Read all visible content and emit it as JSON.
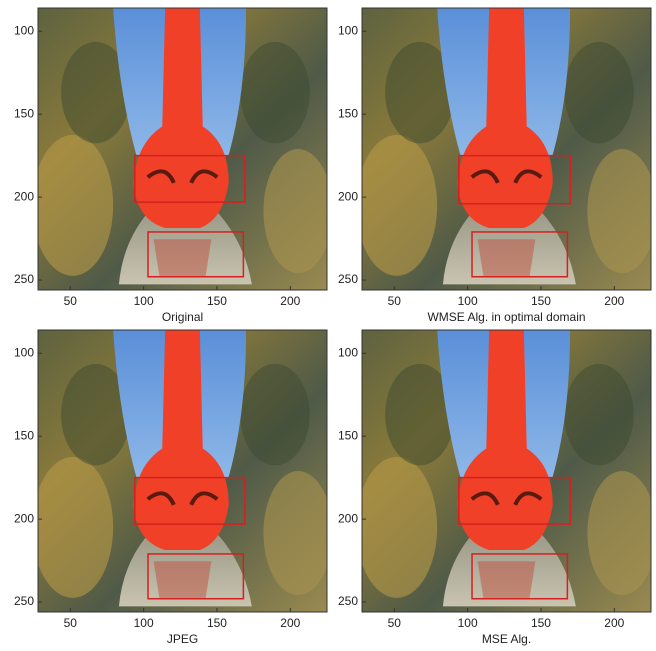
{
  "chart_data": [
    {
      "type": "image",
      "caption": "Original",
      "xlim": [
        28,
        225
      ],
      "ylim": [
        86,
        256
      ],
      "xticks": [
        50,
        100,
        150,
        200
      ],
      "yticks": [
        100,
        150,
        200,
        250
      ],
      "box_color": "#d42020",
      "boxes": [
        {
          "x": [
            94,
            169
          ],
          "y": [
            175,
            203
          ]
        },
        {
          "x": [
            103,
            168
          ],
          "y": [
            221,
            248
          ]
        }
      ]
    },
    {
      "type": "image",
      "caption": "WMSE Alg. in optimal domain",
      "xlim": [
        28,
        225
      ],
      "ylim": [
        86,
        256
      ],
      "xticks": [
        50,
        100,
        150,
        200
      ],
      "yticks": [
        100,
        150,
        200,
        250
      ],
      "box_color": "#d42020",
      "boxes": [
        {
          "x": [
            94,
            170
          ],
          "y": [
            175,
            204
          ]
        },
        {
          "x": [
            103,
            168
          ],
          "y": [
            221,
            248
          ]
        }
      ]
    },
    {
      "type": "image",
      "caption": "JPEG",
      "xlim": [
        28,
        225
      ],
      "ylim": [
        86,
        256
      ],
      "xticks": [
        50,
        100,
        150,
        200
      ],
      "yticks": [
        100,
        150,
        200,
        250
      ],
      "box_color": "#d42020",
      "boxes": [
        {
          "x": [
            94,
            169
          ],
          "y": [
            175,
            203
          ]
        },
        {
          "x": [
            103,
            168
          ],
          "y": [
            221,
            248
          ]
        }
      ]
    },
    {
      "type": "image",
      "caption": "MSE Alg.",
      "xlim": [
        28,
        225
      ],
      "ylim": [
        86,
        256
      ],
      "xticks": [
        50,
        100,
        150,
        200
      ],
      "yticks": [
        100,
        150,
        200,
        250
      ],
      "box_color": "#d42020",
      "boxes": [
        {
          "x": [
            94,
            170
          ],
          "y": [
            175,
            203
          ]
        },
        {
          "x": [
            103,
            168
          ],
          "y": [
            221,
            248
          ]
        }
      ]
    }
  ]
}
